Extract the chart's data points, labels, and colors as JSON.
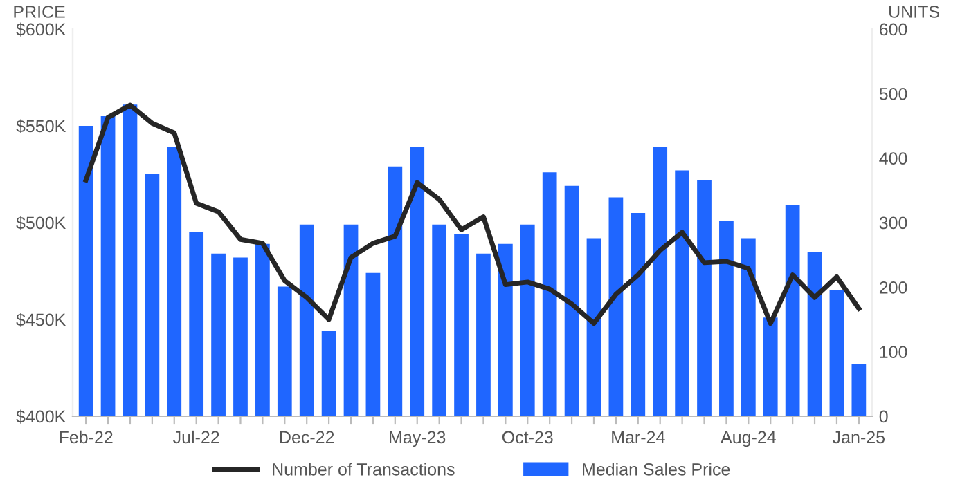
{
  "chart_data": {
    "type": "bar",
    "ylabel": "PRICE",
    "y2label": "UNITS",
    "categories": [
      "Feb-22",
      null,
      null,
      null,
      null,
      "Jul-22",
      null,
      null,
      null,
      null,
      "Dec-22",
      null,
      null,
      null,
      null,
      "May-23",
      null,
      null,
      null,
      null,
      "Oct-23",
      null,
      null,
      null,
      null,
      "Mar-24",
      null,
      null,
      null,
      null,
      "Aug-24",
      null,
      null,
      null,
      null,
      "Jan-25"
    ],
    "series": [
      {
        "name": "Median Sales Price",
        "color": "#1f66ff",
        "values": [
          550,
          555,
          561,
          525,
          539,
          495,
          484,
          482,
          489,
          467,
          499,
          444,
          499,
          474,
          529,
          539,
          499,
          494,
          484,
          489,
          499,
          526,
          519,
          492,
          513,
          505,
          539,
          527,
          522,
          501,
          492,
          451,
          509,
          485,
          465,
          427
        ]
      },
      {
        "name": "Number of Transactions",
        "type": "line",
        "axis": "y2",
        "color": "#262626",
        "values": [
          366,
          463,
          482,
          454,
          439,
          330,
          317,
          274,
          268,
          210,
          184,
          150,
          246,
          268,
          279,
          362,
          336,
          289,
          309,
          204,
          208,
          197,
          174,
          144,
          189,
          219,
          257,
          285,
          238,
          240,
          229,
          144,
          219,
          184,
          216,
          167
        ]
      }
    ],
    "ylim": [
      400,
      600
    ],
    "yticks": [
      {
        "value": 400,
        "label": "$400K"
      },
      {
        "value": 450,
        "label": "$450K"
      },
      {
        "value": 500,
        "label": "$500K"
      },
      {
        "value": 550,
        "label": "$550K"
      },
      {
        "value": 600,
        "label": "$600K"
      }
    ],
    "y2lim": [
      0,
      600
    ],
    "y2ticks": [
      0,
      100,
      200,
      300,
      400,
      500,
      600
    ],
    "legend": "bottom",
    "grid": false,
    "marker": "none",
    "line_style": "solid"
  }
}
